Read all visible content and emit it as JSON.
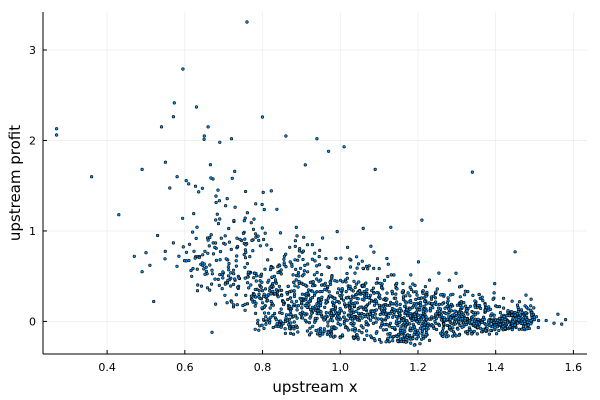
{
  "chart_data": {
    "type": "scatter",
    "title": "",
    "xlabel": "upstream x",
    "ylabel": "upstream profit",
    "xlim": [
      0.235,
      1.635
    ],
    "ylim": [
      -0.36,
      3.42
    ],
    "xticks": [
      0.4,
      0.6,
      0.8,
      1.0,
      1.2,
      1.4,
      1.6
    ],
    "xtick_labels": [
      "0.4",
      "0.6",
      "0.8",
      "1.0",
      "1.2",
      "1.4",
      "1.6"
    ],
    "yticks": [
      0,
      1,
      2,
      3
    ],
    "ytick_labels": [
      "0",
      "1",
      "2",
      "3"
    ],
    "grid": true,
    "legend": "none",
    "marker": {
      "fill": "#009af9",
      "stroke": "#000000",
      "shape": "circle"
    },
    "series": [
      {
        "points": [
          [
            0.27,
            2.13
          ],
          [
            0.27,
            2.06
          ],
          [
            0.36,
            1.6
          ],
          [
            0.43,
            1.18
          ],
          [
            0.49,
            1.68
          ],
          [
            0.54,
            2.15
          ],
          [
            0.595,
            2.79
          ],
          [
            0.63,
            2.37
          ],
          [
            0.66,
            2.15
          ],
          [
            0.76,
            3.31
          ],
          [
            0.8,
            2.26
          ],
          [
            0.72,
            2.02
          ],
          [
            0.86,
            2.05
          ],
          [
            0.91,
            1.73
          ],
          [
            0.94,
            2.02
          ],
          [
            0.97,
            1.88
          ],
          [
            1.01,
            1.93
          ],
          [
            0.69,
            1.98
          ],
          [
            0.65,
            2.05
          ],
          [
            0.58,
            1.6
          ],
          [
            0.55,
            1.76
          ],
          [
            0.61,
            1.52
          ],
          [
            0.52,
            0.22
          ],
          [
            0.47,
            0.72
          ],
          [
            0.49,
            0.55
          ],
          [
            0.51,
            0.62
          ],
          [
            0.67,
            -0.12
          ],
          [
            1.34,
            1.65
          ],
          [
            1.45,
            0.77
          ],
          [
            1.58,
            0.02
          ],
          [
            1.56,
            0.08
          ],
          [
            1.57,
            -0.03
          ],
          [
            1.55,
            -0.02
          ],
          [
            1.53,
            0.01
          ],
          [
            1.5,
            0.02
          ],
          [
            1.21,
            1.12
          ],
          [
            1.13,
            1.04
          ],
          [
            1.09,
            1.68
          ],
          [
            0.5,
            0.76
          ],
          [
            0.53,
            0.95
          ]
        ]
      }
    ]
  }
}
